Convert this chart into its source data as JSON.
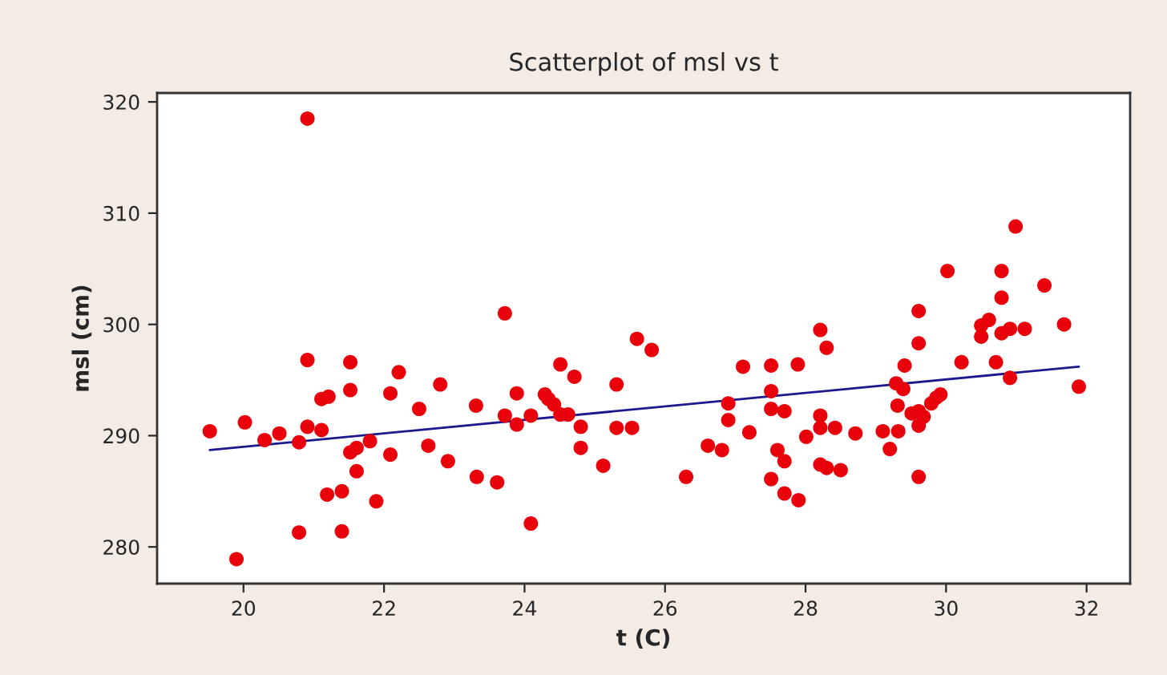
{
  "chart_data": {
    "type": "scatter",
    "title": "Scatterplot of msl vs t",
    "xlabel": "t (C)",
    "ylabel": "msl (cm)",
    "xlim": [
      18.77,
      32.62
    ],
    "ylim": [
      276.7,
      320.8
    ],
    "xticks": [
      20,
      22,
      24,
      26,
      28,
      30,
      32
    ],
    "yticks": [
      280,
      290,
      300,
      310,
      320
    ],
    "grid": false,
    "legend": false,
    "series": [
      {
        "color": "#e8000b",
        "marker": "circle",
        "x": [
          19.52,
          19.9,
          20.02,
          20.3,
          20.51,
          20.79,
          20.79,
          20.91,
          20.91,
          20.91,
          21.11,
          21.11,
          21.21,
          21.19,
          21.4,
          21.4,
          21.52,
          21.52,
          21.52,
          21.61,
          21.61,
          21.8,
          21.89,
          22.09,
          22.09,
          22.21,
          22.5,
          22.63,
          22.8,
          22.91,
          23.31,
          23.32,
          23.61,
          23.72,
          23.89,
          23.72,
          23.89,
          24.09,
          24.09,
          24.29,
          24.34,
          24.42,
          24.51,
          24.51,
          24.62,
          24.71,
          24.8,
          24.8,
          25.12,
          25.31,
          25.31,
          25.53,
          25.6,
          25.81,
          26.3,
          26.61,
          26.81,
          26.9,
          26.9,
          27.11,
          27.2,
          27.51,
          27.51,
          27.51,
          27.7,
          27.51,
          27.6,
          27.7,
          27.7,
          27.89,
          27.9,
          28.01,
          28.21,
          28.3,
          28.21,
          28.21,
          28.42,
          28.71,
          28.21,
          28.3,
          28.5,
          29.1,
          29.32,
          29.2,
          29.41,
          29.61,
          29.61,
          29.29,
          29.39,
          29.31,
          29.51,
          29.61,
          29.68,
          29.61,
          29.61,
          29.79,
          29.86,
          29.92,
          30.02,
          30.22,
          30.5,
          30.5,
          30.61,
          30.71,
          30.79,
          30.79,
          30.79,
          30.91,
          31.12,
          30.91,
          30.99,
          31.4,
          31.68,
          31.89
        ],
        "values": [
          290.4,
          278.9,
          291.2,
          289.6,
          290.2,
          289.4,
          281.3,
          318.5,
          296.8,
          290.8,
          290.5,
          293.3,
          293.5,
          284.7,
          285.0,
          281.4,
          296.6,
          294.1,
          288.5,
          288.9,
          286.8,
          289.5,
          284.1,
          293.8,
          288.3,
          295.7,
          292.4,
          289.1,
          294.6,
          287.7,
          292.7,
          286.3,
          285.8,
          301.0,
          293.8,
          291.8,
          291.0,
          291.8,
          282.1,
          293.7,
          293.3,
          292.8,
          296.4,
          291.9,
          291.9,
          295.3,
          290.8,
          288.9,
          287.3,
          294.6,
          290.7,
          290.7,
          298.7,
          297.7,
          286.3,
          289.1,
          288.7,
          292.9,
          291.4,
          296.2,
          290.3,
          296.3,
          294.0,
          292.4,
          292.2,
          286.1,
          288.7,
          287.7,
          284.8,
          296.4,
          284.2,
          289.9,
          299.5,
          297.9,
          291.8,
          290.7,
          290.7,
          290.2,
          287.4,
          287.1,
          286.9,
          290.4,
          290.4,
          288.8,
          296.3,
          301.2,
          298.3,
          294.7,
          294.2,
          292.7,
          292.0,
          292.2,
          291.7,
          290.9,
          286.3,
          292.9,
          293.4,
          293.7,
          304.8,
          296.6,
          298.9,
          299.9,
          300.4,
          296.6,
          304.8,
          302.4,
          299.2,
          299.6,
          299.6,
          295.2,
          308.8,
          303.5,
          300.0,
          294.4
        ]
      },
      {
        "type": "line",
        "color": "#1a1a8c",
        "marker": "none",
        "line_style": "solid",
        "x": [
          19.52,
          31.89
        ],
        "values": [
          288.7,
          296.2
        ]
      }
    ]
  }
}
